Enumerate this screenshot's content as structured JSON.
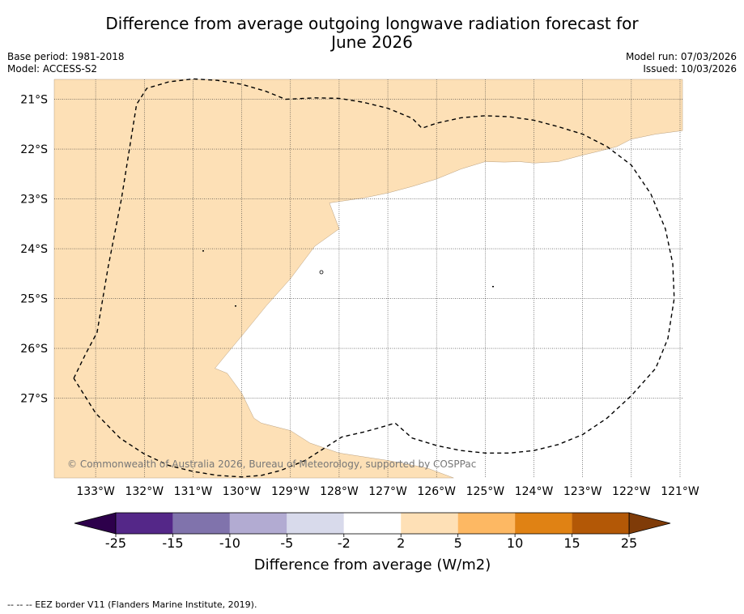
{
  "title": {
    "line1": "Difference from average outgoing longwave radiation forecast for",
    "line2": "June 2026"
  },
  "meta_left": {
    "base_period": "Base period: 1981-2018",
    "model": "Model: ACCESS-S2"
  },
  "meta_right": {
    "model_run": "Model run: 07/03/2026",
    "issued": "Issued: 10/03/2026"
  },
  "map": {
    "extent": {
      "lon_min": -133.85,
      "lon_max": -120.95,
      "lat_min": -28.6,
      "lat_max": -20.6
    },
    "lon_ticks": [
      {
        "lon": -133,
        "label": "133°W"
      },
      {
        "lon": -132,
        "label": "132°W"
      },
      {
        "lon": -131,
        "label": "131°W"
      },
      {
        "lon": -130,
        "label": "130°W"
      },
      {
        "lon": -129,
        "label": "129°W"
      },
      {
        "lon": -128,
        "label": "128°W"
      },
      {
        "lon": -127,
        "label": "127°W"
      },
      {
        "lon": -126,
        "label": "126°W"
      },
      {
        "lon": -125,
        "label": "125°W"
      },
      {
        "lon": -124,
        "label": "124°W"
      },
      {
        "lon": -123,
        "label": "123°W"
      },
      {
        "lon": -122,
        "label": "122°W"
      },
      {
        "lon": -121,
        "label": "121°W"
      }
    ],
    "lat_ticks": [
      {
        "lat": -21,
        "label": "21°S"
      },
      {
        "lat": -22,
        "label": "22°S"
      },
      {
        "lat": -23,
        "label": "23°S"
      },
      {
        "lat": -24,
        "label": "24°S"
      },
      {
        "lat": -25,
        "label": "25°S"
      },
      {
        "lat": -26,
        "label": "26°S"
      },
      {
        "lat": -27,
        "label": "27°S"
      }
    ],
    "regions": [
      {
        "name": "anomaly-2-to-5",
        "color": "#fde0b6",
        "points": [
          [
            -133.85,
            -20.6
          ],
          [
            -120.95,
            -20.6
          ],
          [
            -120.95,
            -21.63
          ],
          [
            -121.5,
            -21.7
          ],
          [
            -122.0,
            -21.8
          ],
          [
            -122.3,
            -21.95
          ],
          [
            -122.7,
            -22.05
          ],
          [
            -123.0,
            -22.12
          ],
          [
            -123.5,
            -22.25
          ],
          [
            -124.0,
            -22.28
          ],
          [
            -124.3,
            -22.25
          ],
          [
            -124.6,
            -22.26
          ],
          [
            -125.0,
            -22.25
          ],
          [
            -125.5,
            -22.4
          ],
          [
            -126.0,
            -22.6
          ],
          [
            -126.5,
            -22.75
          ],
          [
            -127.0,
            -22.88
          ],
          [
            -127.5,
            -22.98
          ],
          [
            -128.2,
            -23.08
          ],
          [
            -128.0,
            -23.6
          ],
          [
            -128.5,
            -23.95
          ],
          [
            -129.0,
            -24.6
          ],
          [
            -129.5,
            -25.15
          ],
          [
            -130.0,
            -25.75
          ],
          [
            -130.3,
            -26.1
          ],
          [
            -130.55,
            -26.4
          ],
          [
            -130.3,
            -26.5
          ],
          [
            -130.0,
            -26.9
          ],
          [
            -129.75,
            -27.4
          ],
          [
            -129.6,
            -27.5
          ],
          [
            -129.0,
            -27.65
          ],
          [
            -128.6,
            -27.9
          ],
          [
            -128.0,
            -28.1
          ],
          [
            -127.0,
            -28.25
          ],
          [
            -126.2,
            -28.4
          ],
          [
            -125.65,
            -28.6
          ],
          [
            -133.85,
            -28.6
          ]
        ]
      }
    ],
    "eez_border": [
      [
        -133.45,
        -26.6
      ],
      [
        -133.2,
        -26.1
      ],
      [
        -132.97,
        -25.68
      ],
      [
        -132.75,
        -24.4
      ],
      [
        -132.47,
        -23.0
      ],
      [
        -132.16,
        -21.1
      ],
      [
        -131.95,
        -20.78
      ],
      [
        -131.5,
        -20.65
      ],
      [
        -131.0,
        -20.59
      ],
      [
        -130.5,
        -20.62
      ],
      [
        -130.0,
        -20.7
      ],
      [
        -129.5,
        -20.84
      ],
      [
        -129.1,
        -21.0
      ],
      [
        -128.5,
        -20.97
      ],
      [
        -128.0,
        -20.98
      ],
      [
        -127.5,
        -21.06
      ],
      [
        -127.0,
        -21.18
      ],
      [
        -126.5,
        -21.38
      ],
      [
        -126.3,
        -21.58
      ],
      [
        -126.0,
        -21.48
      ],
      [
        -125.5,
        -21.37
      ],
      [
        -125.0,
        -21.33
      ],
      [
        -124.5,
        -21.35
      ],
      [
        -124.0,
        -21.42
      ],
      [
        -123.5,
        -21.55
      ],
      [
        -123.0,
        -21.7
      ],
      [
        -122.5,
        -21.95
      ],
      [
        -122.0,
        -22.32
      ],
      [
        -121.6,
        -22.9
      ],
      [
        -121.3,
        -23.6
      ],
      [
        -121.15,
        -24.3
      ],
      [
        -121.12,
        -25.0
      ],
      [
        -121.25,
        -25.8
      ],
      [
        -121.5,
        -26.4
      ],
      [
        -122.0,
        -26.95
      ],
      [
        -122.5,
        -27.4
      ],
      [
        -123.0,
        -27.73
      ],
      [
        -123.5,
        -27.93
      ],
      [
        -124.0,
        -28.05
      ],
      [
        -124.5,
        -28.1
      ],
      [
        -125.0,
        -28.1
      ],
      [
        -125.5,
        -28.05
      ],
      [
        -126.0,
        -27.95
      ],
      [
        -126.5,
        -27.8
      ],
      [
        -126.85,
        -27.5
      ],
      [
        -127.2,
        -27.6
      ],
      [
        -127.5,
        -27.68
      ],
      [
        -127.95,
        -27.78
      ],
      [
        -128.3,
        -28.0
      ],
      [
        -128.7,
        -28.25
      ],
      [
        -129.2,
        -28.45
      ],
      [
        -129.6,
        -28.55
      ],
      [
        -130.0,
        -28.58
      ],
      [
        -130.5,
        -28.55
      ],
      [
        -131.0,
        -28.47
      ],
      [
        -131.5,
        -28.35
      ],
      [
        -132.0,
        -28.12
      ],
      [
        -132.5,
        -27.8
      ],
      [
        -133.0,
        -27.3
      ],
      [
        -133.45,
        -26.6
      ]
    ],
    "copyright": "© Commonwealth of Australia 2026, Bureau of Meteorology, supported by COSPPac"
  },
  "colorbar": {
    "label": "Difference from average (W/m2)",
    "under_color": "#2d004b",
    "over_color": "#7f3b08",
    "bins": [
      {
        "from": -25,
        "to": -15,
        "color": "#542788"
      },
      {
        "from": -15,
        "to": -10,
        "color": "#8073ac"
      },
      {
        "from": -10,
        "to": -5,
        "color": "#b2abd2"
      },
      {
        "from": -5,
        "to": -2,
        "color": "#d8daeb"
      },
      {
        "from": -2,
        "to": 2,
        "color": "#ffffff"
      },
      {
        "from": 2,
        "to": 5,
        "color": "#fee0b6"
      },
      {
        "from": 5,
        "to": 10,
        "color": "#fdb863"
      },
      {
        "from": 10,
        "to": 15,
        "color": "#e08214"
      },
      {
        "from": 15,
        "to": 25,
        "color": "#b35806"
      }
    ],
    "ticks": [
      "-25",
      "-15",
      "-10",
      "-5",
      "-2",
      "2",
      "5",
      "10",
      "15",
      "25"
    ]
  },
  "footnote": "--  --  -- EEZ border V11 (Flanders Marine Institute, 2019)."
}
